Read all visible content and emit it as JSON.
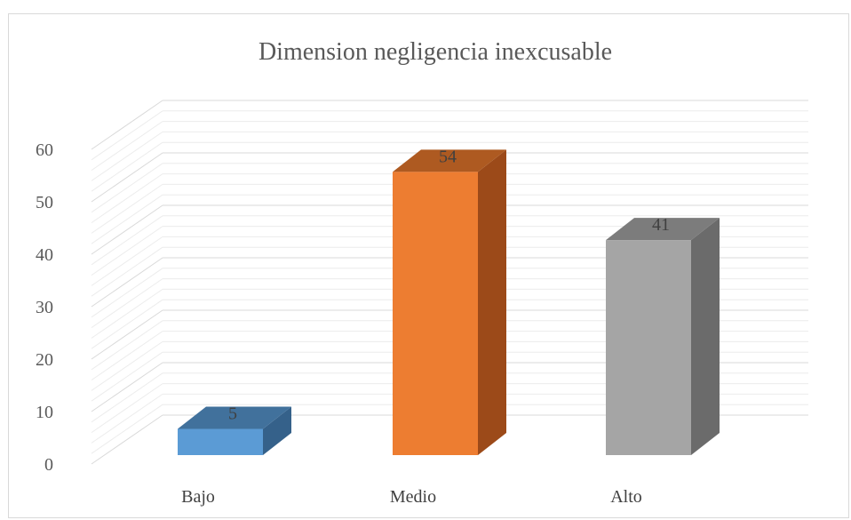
{
  "chart_data": {
    "type": "bar",
    "title": "Dimension negligencia inexcusable",
    "categories": [
      "Bajo",
      "Medio",
      "Alto"
    ],
    "values": [
      5,
      54,
      41
    ],
    "value_labels": [
      "5",
      "54",
      "41"
    ],
    "ylim": [
      0,
      60
    ],
    "yticks": [
      "0",
      "10",
      "20",
      "30",
      "40",
      "50",
      "60"
    ],
    "grid": true,
    "legend": "none",
    "three_d": true,
    "colors": {
      "front": [
        "#5b9bd5",
        "#ed7d31",
        "#a5a5a5"
      ],
      "top": [
        "#41719c",
        "#ae5a21",
        "#7c7c7c"
      ],
      "side": [
        "#35618a",
        "#9c4a19",
        "#6b6b6b"
      ]
    }
  }
}
